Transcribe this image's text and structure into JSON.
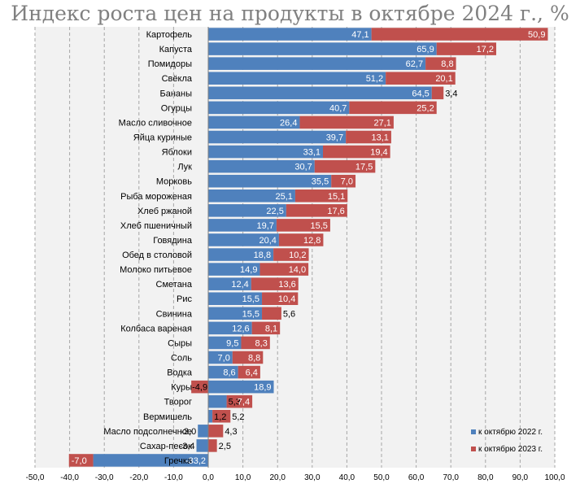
{
  "chart_data": {
    "type": "bar",
    "orientation": "horizontal",
    "stacked": true,
    "title": "Индекс роста цен на продукты в октябре 2024 г., %",
    "xlim": [
      -50,
      100
    ],
    "x_ticks": [
      "-50,0",
      "-40,0",
      "-30,0",
      "-20,0",
      "-10,0",
      "0,0",
      "10,0",
      "20,0",
      "30,0",
      "40,0",
      "50,0",
      "60,0",
      "70,0",
      "80,0",
      "90,0",
      "100,0"
    ],
    "grid": "vertical dashed",
    "legend_position": "bottom-right",
    "categories": [
      "Картофель",
      "Капуста",
      "Помидоры",
      "Свёкла",
      "Бананы",
      "Огурцы",
      "Масло сливочное",
      "Яйца куриные",
      "Яблоки",
      "Лук",
      "Морковь",
      "Рыба мороженая",
      "Хлеб ржаной",
      "Хлеб пшеничный",
      "Говядина",
      "Обед в столовой",
      "Молоко питьевое",
      "Сметана",
      "Рис",
      "Свинина",
      "Колбаса вареная",
      "Сыры",
      "Соль",
      "Водка",
      "Куры",
      "Творог",
      "Вермишель",
      "Масло подсолнечное",
      "Сахар-песок",
      "Гречка"
    ],
    "series": [
      {
        "name": "к октябрю 2022 г.",
        "color": "#4f81bd",
        "values": [
          47.1,
          65.9,
          62.7,
          51.2,
          64.5,
          40.7,
          26.4,
          39.7,
          33.1,
          30.7,
          35.5,
          25.1,
          22.5,
          19.7,
          20.4,
          18.8,
          14.9,
          12.4,
          15.5,
          15.5,
          12.6,
          9.5,
          7.0,
          8.6,
          18.9,
          5.3,
          1.2,
          -3.0,
          -3.4,
          -33.2
        ],
        "labels": [
          "47,1",
          "65,9",
          "62,7",
          "51,2",
          "64,5",
          "40,7",
          "26,4",
          "39,7",
          "33,1",
          "30,7",
          "35,5",
          "25,1",
          "22,5",
          "19,7",
          "20,4",
          "18,8",
          "14,9",
          "12,4",
          "15,5",
          "15,5",
          "12,6",
          "9,5",
          "7,0",
          "8,6",
          "18,9",
          "5,3",
          "1,2",
          "-3,0",
          "-3,4",
          "-33,2"
        ]
      },
      {
        "name": "к октябрю 2023 г.",
        "color": "#c0504d",
        "values": [
          50.9,
          17.2,
          8.8,
          20.1,
          3.4,
          25.2,
          27.1,
          13.1,
          19.4,
          17.5,
          7.0,
          15.1,
          17.6,
          15.5,
          12.8,
          10.2,
          14.0,
          13.6,
          10.4,
          5.6,
          8.1,
          8.3,
          8.8,
          6.4,
          -4.9,
          7.4,
          5.2,
          4.3,
          2.5,
          -7.0
        ],
        "labels": [
          "50,9",
          "17,2",
          "8,8",
          "20,1",
          "3,4",
          "25,2",
          "27,1",
          "13,1",
          "19,4",
          "17,5",
          "7,0",
          "15,1",
          "17,6",
          "15,5",
          "12,8",
          "10,2",
          "14,0",
          "13,6",
          "10,4",
          "5,6",
          "8,1",
          "8,3",
          "8,8",
          "6,4",
          "-4,9",
          "7,4",
          "5,2",
          "4,3",
          "2,5",
          "-7,0"
        ]
      }
    ]
  }
}
